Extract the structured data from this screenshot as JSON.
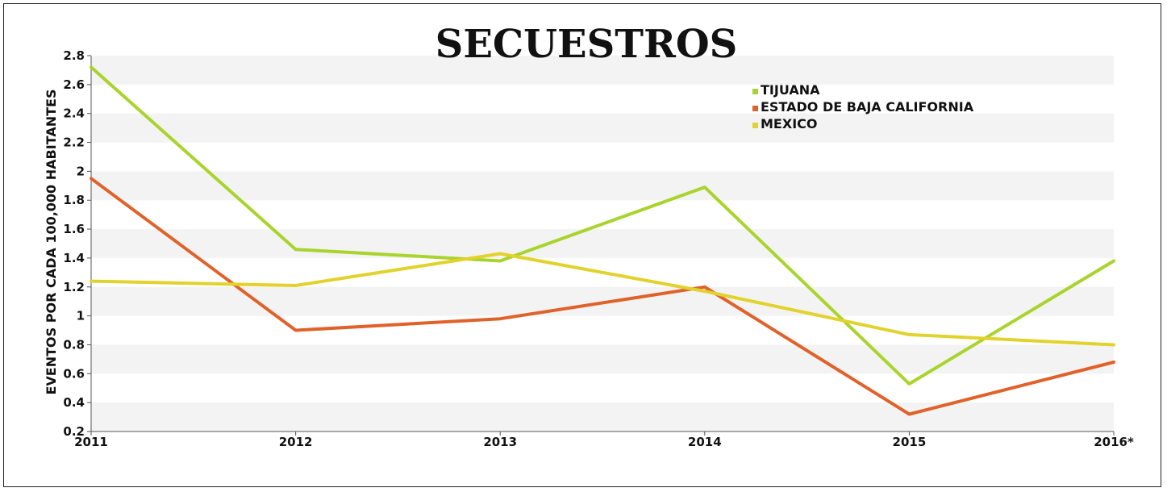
{
  "chart_data": {
    "type": "line",
    "title": "SECUESTROS",
    "ylabel": "EVENTOS POR CADA 100,000 HABITANTES",
    "xlabel": "",
    "categories": [
      "2011",
      "2012",
      "2013",
      "2014",
      "2015",
      "2016*"
    ],
    "ylim": [
      0.2,
      2.8
    ],
    "yticks": [
      "0.2",
      "0.4",
      "0.6",
      "0.8",
      "1",
      "1.2",
      "1.4",
      "1.6",
      "1.8",
      "2",
      "2.2",
      "2.4",
      "2.6",
      "2.8"
    ],
    "grid": "alternating horizontal bands",
    "legend_position": "top-right",
    "series": [
      {
        "name": "TIJUANA",
        "color": "#a8d42c",
        "values": [
          2.72,
          1.46,
          1.38,
          1.89,
          0.53,
          1.38
        ]
      },
      {
        "name": "ESTADO DE BAJA CALIFORNIA",
        "color": "#e0622a",
        "values": [
          1.95,
          0.9,
          0.98,
          1.2,
          0.32,
          0.68
        ]
      },
      {
        "name": "MEXICO",
        "color": "#e2d22c",
        "values": [
          1.24,
          1.21,
          1.43,
          1.17,
          0.87,
          0.8
        ]
      }
    ]
  }
}
